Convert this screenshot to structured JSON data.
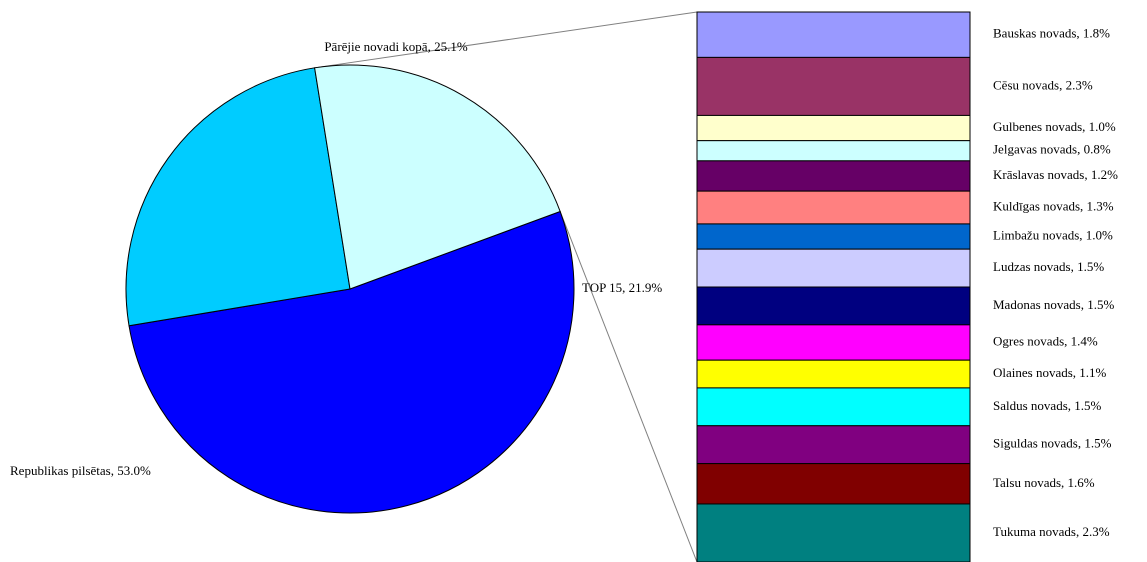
{
  "chart_data": {
    "type": "pie",
    "pie": {
      "slices": [
        {
          "label": "Republikas pilsētas, 53.0%",
          "value": 53.0,
          "color": "#0000ff"
        },
        {
          "label": "Pārējie novadi kopā, 25.1%",
          "value": 25.1,
          "color": "#00ccff"
        },
        {
          "label": "TOP 15, 21.9%",
          "value": 21.9,
          "color": "#ccffff"
        }
      ]
    },
    "breakdown": {
      "of_slice": "TOP 15, 21.9%",
      "items": [
        {
          "label": "Bauskas novads, 1.8%",
          "value": 1.8,
          "color": "#9999ff"
        },
        {
          "label": "Cēsu novads, 2.3%",
          "value": 2.3,
          "color": "#993366"
        },
        {
          "label": "Gulbenes novads, 1.0%",
          "value": 1.0,
          "color": "#ffffcc"
        },
        {
          "label": "Jelgavas novads, 0.8%",
          "value": 0.8,
          "color": "#ccffff"
        },
        {
          "label": "Krāslavas novads, 1.2%",
          "value": 1.2,
          "color": "#660066"
        },
        {
          "label": "Kuldīgas novads, 1.3%",
          "value": 1.3,
          "color": "#ff8080"
        },
        {
          "label": "Limbažu novads, 1.0%",
          "value": 1.0,
          "color": "#0066cc"
        },
        {
          "label": "Ludzas novads, 1.5%",
          "value": 1.5,
          "color": "#ccccff"
        },
        {
          "label": "Madonas novads, 1.5%",
          "value": 1.5,
          "color": "#000080"
        },
        {
          "label": "Ogres novads, 1.4%",
          "value": 1.4,
          "color": "#ff00ff"
        },
        {
          "label": "Olaines novads, 1.1%",
          "value": 1.1,
          "color": "#ffff00"
        },
        {
          "label": "Saldus novads, 1.5%",
          "value": 1.5,
          "color": "#00ffff"
        },
        {
          "label": "Siguldas novads, 1.5%",
          "value": 1.5,
          "color": "#800080"
        },
        {
          "label": "Talsu novads, 1.6%",
          "value": 1.6,
          "color": "#800000"
        },
        {
          "label": "Tukuma novads, 2.3%",
          "value": 2.3,
          "color": "#008080"
        }
      ]
    }
  }
}
